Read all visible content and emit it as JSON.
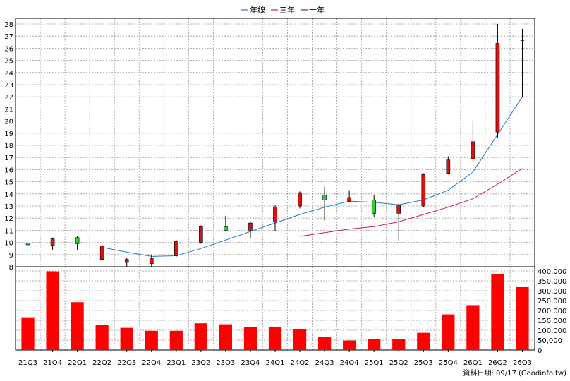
{
  "chart_data": {
    "type": "candlestick",
    "legend": [
      {
        "name": "年線",
        "color": "#1f77d4"
      },
      {
        "name": "三年",
        "color": "#d4145a"
      },
      {
        "name": "十年",
        "color": "#9c1a5a"
      }
    ],
    "categories": [
      "21Q3",
      "21Q4",
      "22Q1",
      "22Q2",
      "22Q3",
      "22Q4",
      "23Q1",
      "23Q2",
      "23Q3",
      "23Q4",
      "24Q1",
      "24Q2",
      "24Q3",
      "24Q4",
      "25Q1",
      "25Q2",
      "25Q3",
      "25Q4",
      "26Q1",
      "26Q2",
      "26Q3"
    ],
    "price_axis": {
      "min": 8,
      "max": 28,
      "ticks": [
        8,
        9,
        10,
        11,
        12,
        13,
        14,
        15,
        16,
        17,
        18,
        19,
        20,
        21,
        22,
        23,
        24,
        25,
        26,
        27,
        28
      ]
    },
    "volume_axis": {
      "min": 0,
      "max": 400000,
      "ticks": [
        "0",
        "50,000",
        "100,000",
        "150,000",
        "200,000",
        "250,000",
        "300,000",
        "350,000",
        "400,000"
      ],
      "tick_values": [
        0,
        50000,
        100000,
        150000,
        200000,
        250000,
        300000,
        350000,
        400000
      ]
    },
    "candles": [
      {
        "open": 9.8,
        "close": 9.95,
        "high": 10.1,
        "low": 9.6
      },
      {
        "open": 10.3,
        "close": 9.75,
        "high": 10.4,
        "low": 9.4
      },
      {
        "open": 9.9,
        "close": 10.4,
        "high": 10.5,
        "low": 9.4
      },
      {
        "open": 9.7,
        "close": 8.6,
        "high": 9.8,
        "low": 8.5
      },
      {
        "open": 8.6,
        "close": 8.35,
        "high": 8.7,
        "low": 8.0
      },
      {
        "open": 8.7,
        "close": 8.25,
        "high": 9.0,
        "low": 8.0
      },
      {
        "open": 10.1,
        "close": 8.9,
        "high": 10.2,
        "low": 8.8
      },
      {
        "open": 11.3,
        "close": 10.0,
        "high": 11.4,
        "low": 9.9
      },
      {
        "open": 11.0,
        "close": 11.3,
        "high": 12.2,
        "low": 10.9
      },
      {
        "open": 11.6,
        "close": 11.0,
        "high": 11.7,
        "low": 10.3
      },
      {
        "open": 12.9,
        "close": 11.7,
        "high": 13.1,
        "low": 10.9
      },
      {
        "open": 14.1,
        "close": 13.0,
        "high": 14.2,
        "low": 12.8
      },
      {
        "open": 13.5,
        "close": 13.9,
        "high": 14.6,
        "low": 11.8
      },
      {
        "open": 13.7,
        "close": 13.4,
        "high": 14.3,
        "low": 13.3
      },
      {
        "open": 12.4,
        "close": 13.5,
        "high": 13.9,
        "low": 12.1
      },
      {
        "open": 13.1,
        "close": 12.4,
        "high": 13.2,
        "low": 10.1
      },
      {
        "open": 15.6,
        "close": 13.0,
        "high": 15.7,
        "low": 12.9
      },
      {
        "open": 16.8,
        "close": 15.7,
        "high": 17.1,
        "low": 15.6
      },
      {
        "open": 18.3,
        "close": 16.9,
        "high": 20.0,
        "low": 16.7
      },
      {
        "open": 26.4,
        "close": 19.1,
        "high": 28.0,
        "low": 18.6
      },
      {
        "open": 26.7,
        "close": 26.7,
        "high": 27.6,
        "low": 22.0
      }
    ],
    "ma_lines": [
      {
        "name": "年線",
        "color": "#1f77d4",
        "values": [
          null,
          null,
          null,
          9.6,
          9.2,
          8.85,
          8.9,
          9.5,
          10.2,
          10.9,
          11.6,
          12.3,
          12.9,
          13.4,
          13.3,
          13.1,
          13.5,
          14.3,
          15.8,
          18.9,
          22.0
        ]
      },
      {
        "name": "三年",
        "color": "#d4145a",
        "values": [
          null,
          null,
          null,
          null,
          null,
          null,
          null,
          null,
          null,
          null,
          null,
          10.5,
          10.8,
          11.1,
          11.3,
          11.7,
          12.3,
          12.9,
          13.6,
          14.8,
          16.1
        ]
      }
    ],
    "volume": [
      162000,
      398000,
      242000,
      128000,
      112000,
      97000,
      97000,
      135000,
      130000,
      115000,
      118000,
      107000,
      66000,
      48000,
      57000,
      56000,
      87000,
      180000,
      227000,
      385000,
      318000
    ],
    "grid": true
  },
  "footer": {
    "text": "資料日期: 09/17  (Goodinfo.tw)"
  }
}
